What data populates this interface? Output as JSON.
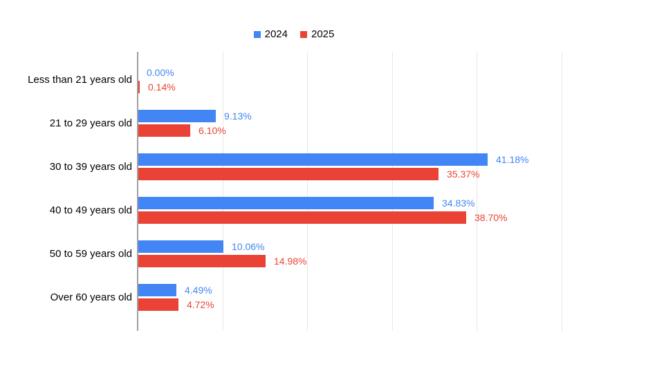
{
  "chart_data": {
    "type": "bar",
    "orientation": "horizontal",
    "title": "",
    "xlabel": "",
    "ylabel": "",
    "categories": [
      "Less than 21 years old",
      "21 to 29 years old",
      "30 to 39 years old",
      "40 to 49 years old",
      "50 to 59 years old",
      "Over 60 years old"
    ],
    "series": [
      {
        "name": "2024",
        "color": "#4285F4",
        "values": [
          0.0,
          9.13,
          41.18,
          34.83,
          10.06,
          4.49
        ],
        "value_labels": [
          "0.00%",
          "9.13%",
          "41.18%",
          "34.83%",
          "10.06%",
          "4.49%"
        ]
      },
      {
        "name": "2025",
        "color": "#EA4335",
        "values": [
          0.14,
          6.1,
          35.37,
          38.7,
          14.98,
          4.72
        ],
        "value_labels": [
          "0.14%",
          "6.10%",
          "35.37%",
          "38.70%",
          "14.98%",
          "4.72%"
        ]
      }
    ],
    "xlim": [
      0,
      50
    ],
    "gridline_interval": 10,
    "grid": true,
    "legend_position": "top",
    "axis_color": "#9e9e9e",
    "gridline_color": "#e6e6e6",
    "background_color": "#ffffff",
    "text_color": "#000000"
  }
}
